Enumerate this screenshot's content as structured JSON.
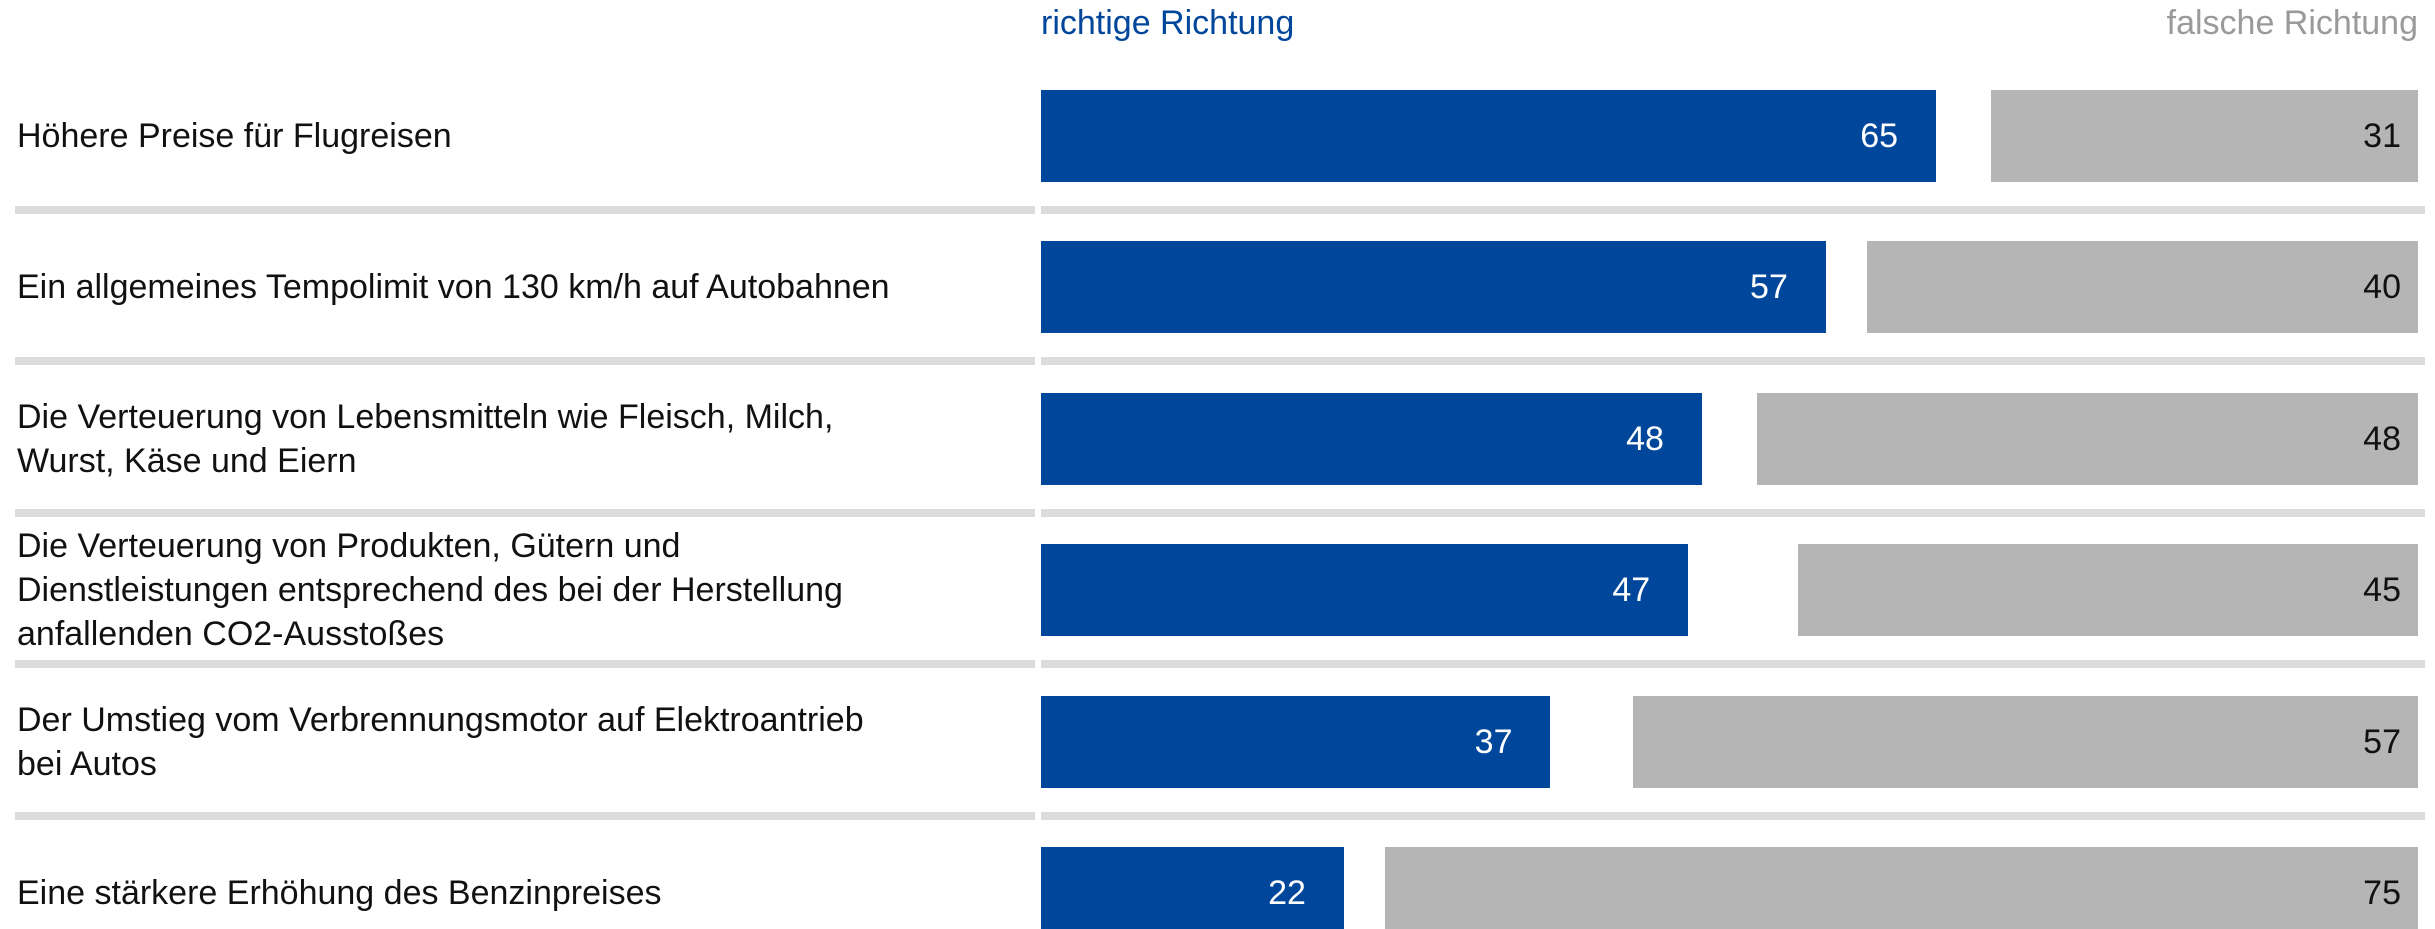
{
  "chart_data": {
    "type": "bar",
    "categories": [
      "Höhere Preise für Flugreisen",
      "Ein allgemeines Tempolimit von 130 km/h auf Autobahnen",
      "Die Verteuerung von Lebensmitteln wie Fleisch, Milch,\nWurst, Käse und Eiern",
      "Die Verteuerung von Produkten, Gütern und\nDienstleistungen entsprechend des bei der Herstellung\nanfallenden CO2-Ausstoßes",
      "Der Umstieg vom Verbrennungsmotor auf Elektroantrieb\nbei Autos",
      "Eine stärkere Erhöhung des Benzinpreises"
    ],
    "series": [
      {
        "name": "richtige Richtung",
        "color": "#00479b",
        "values": [
          65,
          57,
          48,
          47,
          37,
          22
        ]
      },
      {
        "name": "falsche Richtung",
        "color": "#b5b5b5",
        "values": [
          31,
          40,
          48,
          45,
          57,
          75
        ]
      }
    ]
  }
}
